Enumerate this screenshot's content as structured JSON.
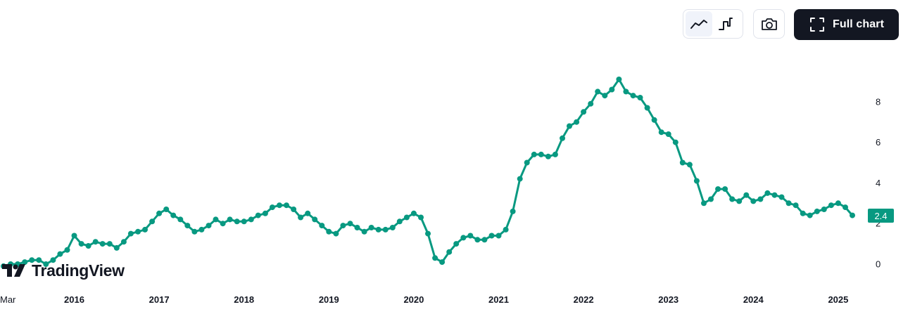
{
  "toolbar": {
    "line_style_icon": "line-chart-icon",
    "step_style_icon": "step-line-icon",
    "camera_icon": "camera-icon",
    "fullscreen_icon": "expand-corners-icon",
    "full_chart_label": "Full chart"
  },
  "logo": {
    "text": "TradingView"
  },
  "last_value_label": "2.4",
  "colors": {
    "series": "#089981",
    "text": "#131722",
    "button_dark": "#131722"
  },
  "chart_data": {
    "type": "line",
    "title": "",
    "xlabel": "",
    "ylabel": "",
    "y_axis_position": "right",
    "grid": false,
    "ylim": [
      -0.5,
      9.8
    ],
    "xlim": [
      "2015-03",
      "2025-05"
    ],
    "x_tick_labels": [
      "Mar",
      "2016",
      "2017",
      "2018",
      "2019",
      "2020",
      "2021",
      "2022",
      "2023",
      "2024",
      "2025"
    ],
    "y_ticks": [
      0,
      2,
      4,
      6,
      8
    ],
    "series": [
      {
        "x": [
          "2015-03",
          "2015-04",
          "2015-05",
          "2015-06",
          "2015-07",
          "2015-08",
          "2015-09",
          "2015-10",
          "2015-11",
          "2015-12",
          "2016-01",
          "2016-02",
          "2016-03",
          "2016-04",
          "2016-05",
          "2016-06",
          "2016-07",
          "2016-08",
          "2016-09",
          "2016-10",
          "2016-11",
          "2016-12",
          "2017-01",
          "2017-02",
          "2017-03",
          "2017-04",
          "2017-05",
          "2017-06",
          "2017-07",
          "2017-08",
          "2017-09",
          "2017-10",
          "2017-11",
          "2017-12",
          "2018-01",
          "2018-02",
          "2018-03",
          "2018-04",
          "2018-05",
          "2018-06",
          "2018-07",
          "2018-08",
          "2018-09",
          "2018-10",
          "2018-11",
          "2018-12",
          "2019-01",
          "2019-02",
          "2019-03",
          "2019-04",
          "2019-05",
          "2019-06",
          "2019-07",
          "2019-08",
          "2019-09",
          "2019-10",
          "2019-11",
          "2019-12",
          "2020-01",
          "2020-02",
          "2020-03",
          "2020-04",
          "2020-05",
          "2020-06",
          "2020-07",
          "2020-08",
          "2020-09",
          "2020-10",
          "2020-11",
          "2020-12",
          "2021-01",
          "2021-02",
          "2021-03",
          "2021-04",
          "2021-05",
          "2021-06",
          "2021-07",
          "2021-08",
          "2021-09",
          "2021-10",
          "2021-11",
          "2021-12",
          "2022-01",
          "2022-02",
          "2022-03",
          "2022-04",
          "2022-05",
          "2022-06",
          "2022-07",
          "2022-08",
          "2022-09",
          "2022-10",
          "2022-11",
          "2022-12",
          "2023-01",
          "2023-02",
          "2023-03",
          "2023-04",
          "2023-05",
          "2023-06",
          "2023-07",
          "2023-08",
          "2023-09",
          "2023-10",
          "2023-11",
          "2023-12",
          "2024-01",
          "2024-02",
          "2024-03",
          "2024-04",
          "2024-05",
          "2024-06",
          "2024-07",
          "2024-08",
          "2024-09",
          "2024-10",
          "2024-11",
          "2024-12",
          "2025-01",
          "2025-02",
          "2025-03"
        ],
        "values": [
          -0.1,
          0.0,
          0.0,
          0.1,
          0.2,
          0.2,
          0.0,
          0.2,
          0.5,
          0.7,
          1.4,
          1.0,
          0.9,
          1.1,
          1.0,
          1.0,
          0.8,
          1.1,
          1.5,
          1.6,
          1.7,
          2.1,
          2.5,
          2.7,
          2.4,
          2.2,
          1.9,
          1.6,
          1.7,
          1.9,
          2.2,
          2.0,
          2.2,
          2.1,
          2.1,
          2.2,
          2.4,
          2.5,
          2.8,
          2.9,
          2.9,
          2.7,
          2.3,
          2.5,
          2.2,
          1.9,
          1.6,
          1.5,
          1.9,
          2.0,
          1.8,
          1.6,
          1.8,
          1.7,
          1.7,
          1.8,
          2.1,
          2.3,
          2.5,
          2.3,
          1.5,
          0.3,
          0.1,
          0.6,
          1.0,
          1.3,
          1.4,
          1.2,
          1.2,
          1.4,
          1.4,
          1.7,
          2.6,
          4.2,
          5.0,
          5.4,
          5.4,
          5.3,
          5.4,
          6.2,
          6.8,
          7.0,
          7.5,
          7.9,
          8.5,
          8.3,
          8.6,
          9.1,
          8.5,
          8.3,
          8.2,
          7.7,
          7.1,
          6.5,
          6.4,
          6.0,
          5.0,
          4.9,
          4.1,
          3.0,
          3.2,
          3.7,
          3.7,
          3.2,
          3.1,
          3.4,
          3.1,
          3.2,
          3.5,
          3.4,
          3.3,
          3.0,
          2.9,
          2.5,
          2.4,
          2.6,
          2.7,
          2.9,
          3.0,
          2.8,
          2.4
        ]
      }
    ]
  }
}
